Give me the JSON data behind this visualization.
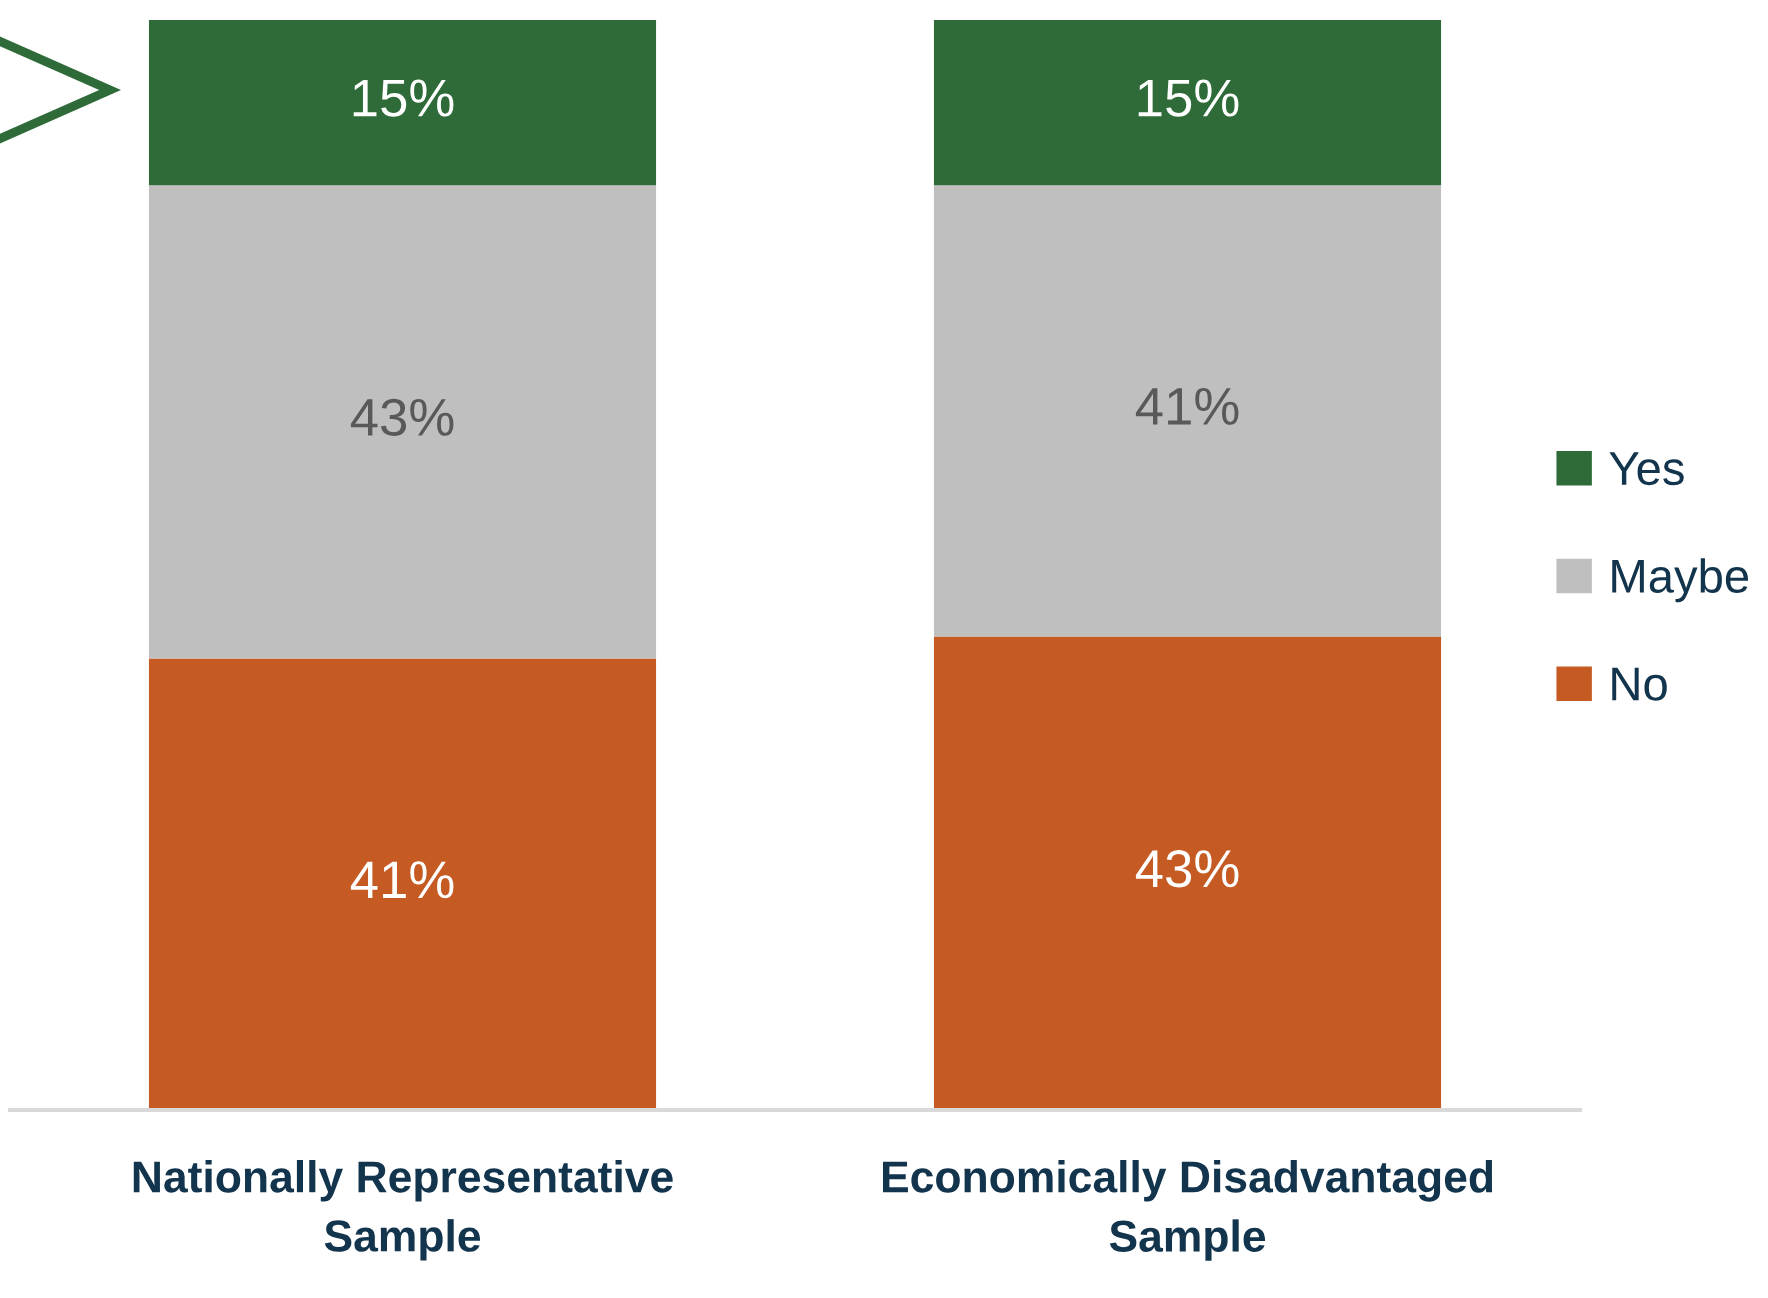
{
  "chart_data": {
    "type": "bar",
    "stacked": true,
    "categories": [
      "Nationally Representative\nSample",
      "Economically Disadvantaged\nSample"
    ],
    "series": [
      {
        "name": "No",
        "color": "#c55a22",
        "values": [
          41,
          43
        ],
        "value_labels": [
          "41%",
          "43%"
        ]
      },
      {
        "name": "Maybe",
        "color": "#bfbfbf",
        "values": [
          43,
          41
        ],
        "value_labels": [
          "43%",
          "41%"
        ]
      },
      {
        "name": "Yes",
        "color": "#2e6b38",
        "values": [
          15,
          15
        ],
        "value_labels": [
          "15%",
          "15%"
        ]
      }
    ],
    "legend": "right"
  }
}
